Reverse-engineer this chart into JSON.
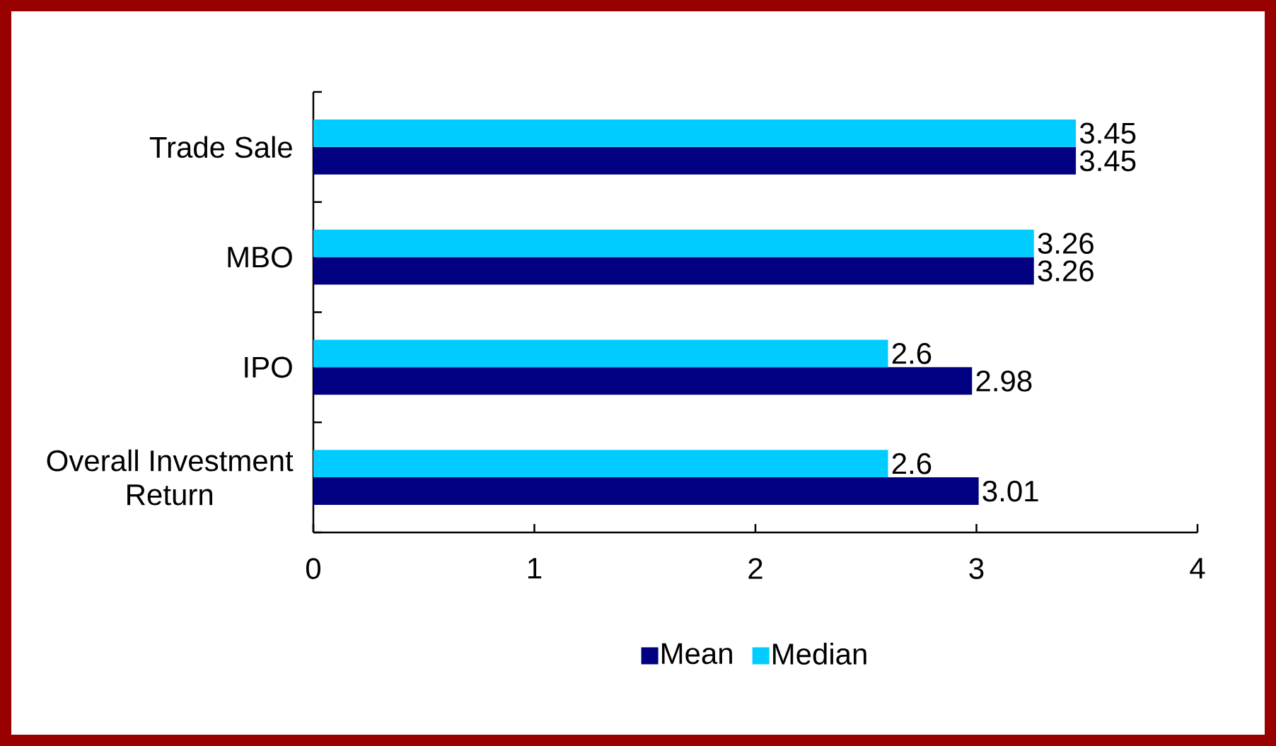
{
  "chart_data": {
    "type": "bar",
    "orientation": "horizontal",
    "categories": [
      "Trade Sale",
      "MBO",
      "IPO",
      "Overall Investment Return"
    ],
    "series": [
      {
        "name": "Mean",
        "color": "#000080",
        "values": [
          3.45,
          3.26,
          2.98,
          3.01
        ]
      },
      {
        "name": "Median",
        "color": "#00ccff",
        "values": [
          3.45,
          3.26,
          2.6,
          2.6
        ]
      }
    ],
    "xlim": [
      0,
      4
    ],
    "xticks": [
      0,
      1,
      2,
      3,
      4
    ],
    "data_labels": true,
    "legend": "bottom"
  }
}
